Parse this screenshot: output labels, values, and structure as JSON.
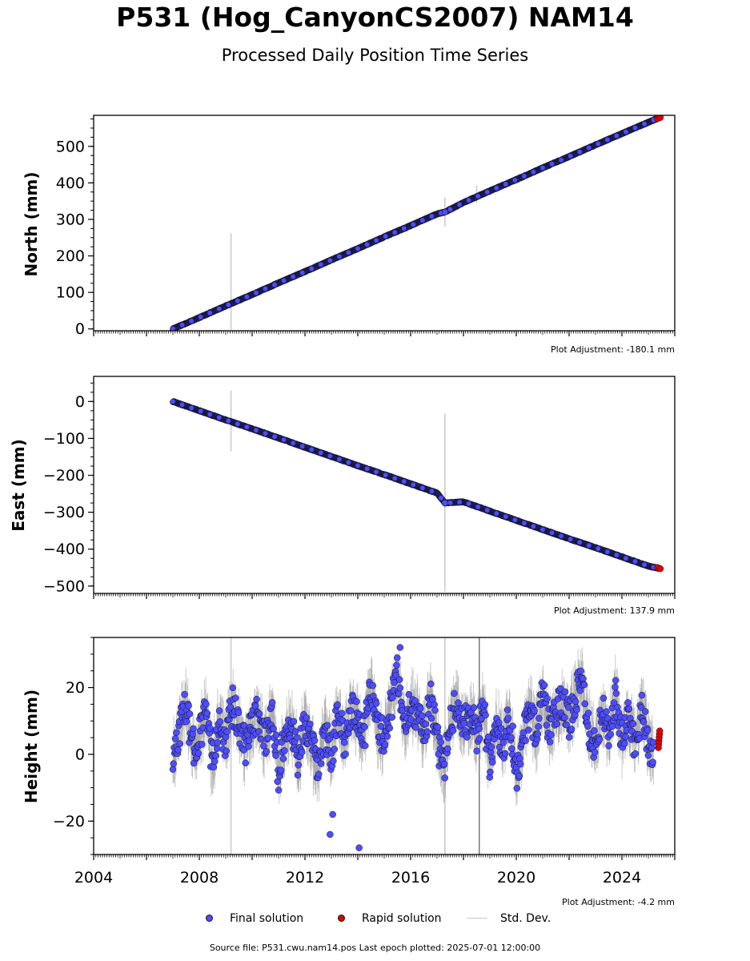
{
  "title": "P531 (Hog_CanyonCS2007) NAM14",
  "subtitle": "Processed Daily Position Time Series",
  "legend": {
    "final": "Final solution",
    "rapid": "Rapid solution",
    "std": "Std. Dev."
  },
  "source": "Source file: P531.cwu.nam14.pos  Last epoch plotted: 2025-07-01 12:00:00",
  "colors": {
    "final": "#4d4dff",
    "rapid": "#e00000",
    "edge": "#111111",
    "stddev": "#c8c8c8"
  },
  "chart_data": [
    {
      "type": "scatter",
      "ylabel": "North (mm)",
      "adjustment": "Plot Adjustment: -180.1 mm",
      "xlim": [
        2004,
        2026
      ],
      "ylim": [
        -5,
        585
      ],
      "yticks": [
        0,
        100,
        200,
        300,
        400,
        500
      ],
      "ytick_labels": [
        "0",
        "100",
        "200",
        "300",
        "400",
        "500"
      ],
      "series": [
        {
          "kind": "final",
          "x": [
            2007.0,
            2008.0,
            2009.0,
            2010.0,
            2011.0,
            2012.0,
            2013.0,
            2014.0,
            2015.0,
            2016.0,
            2017.0,
            2017.3,
            2018.0,
            2019.0,
            2020.0,
            2021.0,
            2022.0,
            2023.0,
            2024.0,
            2025.0,
            2025.4
          ],
          "y": [
            0,
            31,
            63,
            94,
            126,
            157,
            189,
            220,
            252,
            283,
            315,
            320,
            346,
            378,
            409,
            441,
            472,
            504,
            535,
            566,
            578
          ]
        },
        {
          "kind": "rapid",
          "x": [
            2025.35,
            2025.45
          ],
          "y": [
            576,
            579
          ]
        }
      ],
      "stddev_spikes": [
        {
          "x": 2009.2,
          "low": -2,
          "high": 262
        },
        {
          "x": 2017.3,
          "low": 280,
          "high": 360
        },
        {
          "x": 2018.5,
          "low": 345,
          "high": 392
        }
      ]
    },
    {
      "type": "scatter",
      "ylabel": "East (mm)",
      "adjustment": "Plot Adjustment: 137.9 mm",
      "xlim": [
        2004,
        2026
      ],
      "ylim": [
        -520,
        68
      ],
      "yticks": [
        0,
        -100,
        -200,
        -300,
        -400,
        -500
      ],
      "ytick_labels": [
        "0",
        "−100",
        "−200",
        "−300",
        "−400",
        "−500"
      ],
      "series": [
        {
          "kind": "final",
          "x": [
            2007.0,
            2008.0,
            2009.0,
            2010.0,
            2011.0,
            2012.0,
            2013.0,
            2014.0,
            2015.0,
            2016.0,
            2017.0,
            2017.3,
            2018.0,
            2019.0,
            2020.0,
            2021.0,
            2022.0,
            2023.0,
            2024.0,
            2025.0,
            2025.4
          ],
          "y": [
            0,
            -25,
            -50,
            -74,
            -99,
            -124,
            -149,
            -174,
            -198,
            -223,
            -248,
            -275,
            -272,
            -297,
            -322,
            -347,
            -372,
            -396,
            -421,
            -446,
            -452
          ]
        },
        {
          "kind": "rapid",
          "x": [
            2025.35,
            2025.45
          ],
          "y": [
            -450,
            -453
          ]
        }
      ],
      "stddev_spikes": [
        {
          "x": 2009.2,
          "low": -135,
          "high": 30
        },
        {
          "x": 2017.3,
          "low": -515,
          "high": -32
        }
      ]
    },
    {
      "type": "scatter",
      "ylabel": "Height (mm)",
      "adjustment": "Plot Adjustment: -4.2 mm",
      "xlim": [
        2004,
        2026
      ],
      "ylim": [
        -30,
        35
      ],
      "yticks": [
        20,
        0,
        -20
      ],
      "ytick_labels": [
        "20",
        "0",
        "−20"
      ],
      "xticks": [
        2004,
        2008,
        2012,
        2016,
        2020,
        2024
      ],
      "xtick_labels": [
        "2004",
        "2008",
        "2012",
        "2016",
        "2020",
        "2024"
      ],
      "series": [
        {
          "kind": "final",
          "x": [
            2007.0,
            2007.25,
            2007.5,
            2007.75,
            2008.0,
            2008.25,
            2008.5,
            2008.75,
            2009.0,
            2009.25,
            2009.5,
            2009.75,
            2010.0,
            2010.25,
            2010.5,
            2010.75,
            2011.0,
            2011.25,
            2011.5,
            2011.75,
            2012.0,
            2012.25,
            2012.5,
            2012.75,
            2013.0,
            2013.25,
            2013.5,
            2013.75,
            2014.0,
            2014.25,
            2014.5,
            2014.75,
            2015.0,
            2015.25,
            2015.5,
            2015.75,
            2016.0,
            2016.25,
            2016.5,
            2016.75,
            2017.0,
            2017.25,
            2017.5,
            2017.75,
            2018.0,
            2018.25,
            2018.5,
            2018.75,
            2019.0,
            2019.25,
            2019.5,
            2019.75,
            2020.0,
            2020.25,
            2020.5,
            2020.75,
            2021.0,
            2021.25,
            2021.5,
            2021.75,
            2022.0,
            2022.25,
            2022.5,
            2022.75,
            2023.0,
            2023.25,
            2023.5,
            2023.75,
            2024.0,
            2024.25,
            2024.5,
            2024.75,
            2025.0,
            2025.2
          ],
          "y": [
            -2,
            8,
            14,
            2,
            6,
            12,
            -3,
            10,
            4,
            15,
            8,
            2,
            9,
            12,
            3,
            14,
            -6,
            5,
            8,
            -2,
            10,
            2,
            -4,
            6,
            0,
            12,
            4,
            14,
            10,
            6,
            22,
            8,
            5,
            14,
            25,
            8,
            16,
            12,
            5,
            18,
            4,
            -5,
            10,
            16,
            8,
            12,
            6,
            14,
            -4,
            10,
            2,
            12,
            -6,
            4,
            14,
            6,
            18,
            8,
            12,
            16,
            10,
            18,
            22,
            8,
            2,
            14,
            6,
            18,
            4,
            12,
            2,
            14,
            4,
            -2
          ]
        },
        {
          "kind": "final",
          "x": [
            2012.95,
            2013.05,
            2014.05,
            2015.6
          ],
          "y": [
            -24,
            -18,
            -28,
            32
          ]
        },
        {
          "kind": "rapid",
          "x": [
            2025.38,
            2025.39,
            2025.4,
            2025.41,
            2025.42,
            2025.43
          ],
          "y": [
            2,
            3,
            4,
            5,
            6,
            7
          ]
        }
      ],
      "stddev_spikes": [
        {
          "x": 2009.2,
          "low": -30,
          "high": 35
        },
        {
          "x": 2017.3,
          "low": -30,
          "high": 35
        }
      ],
      "vline": {
        "x": 2018.6
      }
    }
  ]
}
